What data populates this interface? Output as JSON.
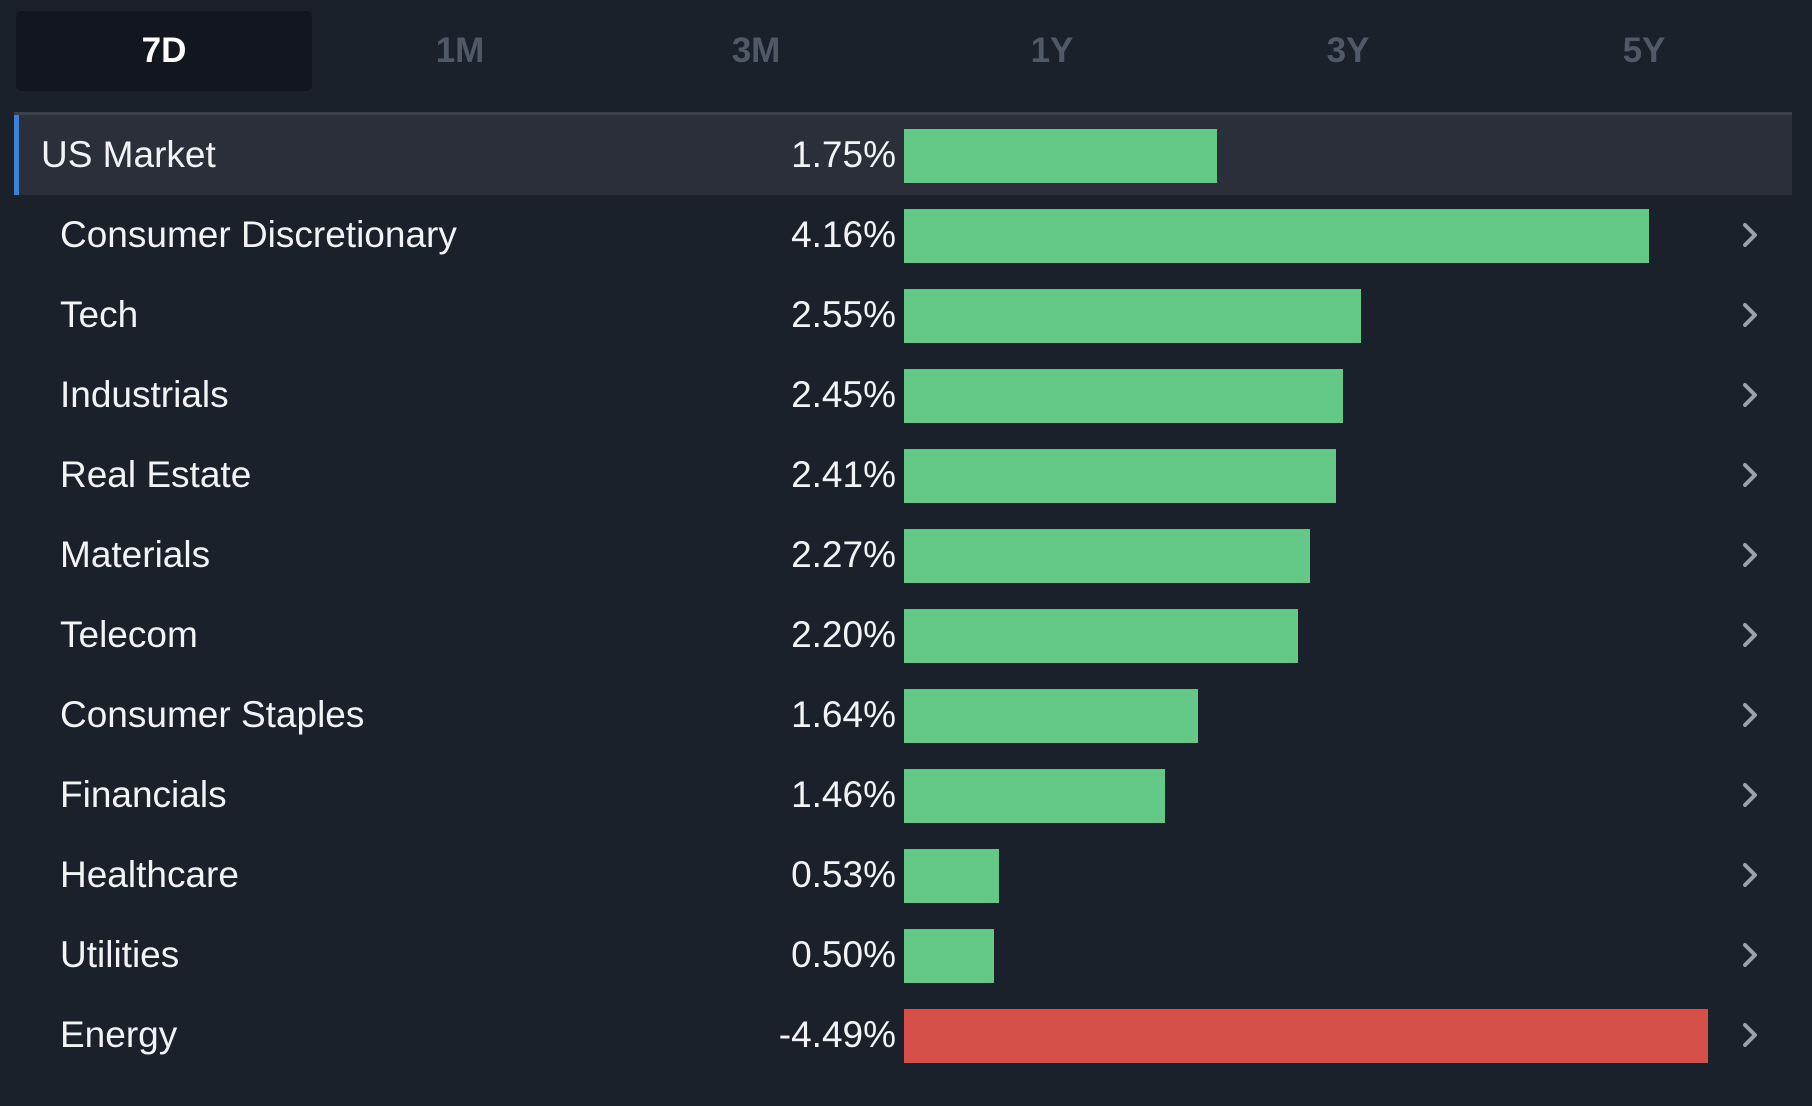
{
  "tabs": [
    {
      "label": "7D",
      "active": true
    },
    {
      "label": "1M",
      "active": false
    },
    {
      "label": "3M",
      "active": false
    },
    {
      "label": "1Y",
      "active": false
    },
    {
      "label": "3Y",
      "active": false
    },
    {
      "label": "5Y",
      "active": false
    }
  ],
  "colors": {
    "positive": "#64c886",
    "negative": "#d64f48",
    "highlight_accent": "#3b82d6",
    "chevron": "#9aa1ac"
  },
  "icons": {
    "row_arrow": "chevron-right-icon"
  },
  "chart_data": {
    "type": "bar",
    "orientation": "horizontal",
    "value_suffix": "%",
    "scale_max_abs": 4.49,
    "summary": {
      "label": "US Market",
      "value": 1.75,
      "display": "1.75%"
    },
    "rows": [
      {
        "label": "Consumer Discretionary",
        "value": 4.16,
        "display": "4.16%"
      },
      {
        "label": "Tech",
        "value": 2.55,
        "display": "2.55%"
      },
      {
        "label": "Industrials",
        "value": 2.45,
        "display": "2.45%"
      },
      {
        "label": "Real Estate",
        "value": 2.41,
        "display": "2.41%"
      },
      {
        "label": "Materials",
        "value": 2.27,
        "display": "2.27%"
      },
      {
        "label": "Telecom",
        "value": 2.2,
        "display": "2.20%"
      },
      {
        "label": "Consumer Staples",
        "value": 1.64,
        "display": "1.64%"
      },
      {
        "label": "Financials",
        "value": 1.46,
        "display": "1.46%"
      },
      {
        "label": "Healthcare",
        "value": 0.53,
        "display": "0.53%"
      },
      {
        "label": "Utilities",
        "value": 0.5,
        "display": "0.50%"
      },
      {
        "label": "Energy",
        "value": -4.49,
        "display": "-4.49%"
      }
    ]
  }
}
